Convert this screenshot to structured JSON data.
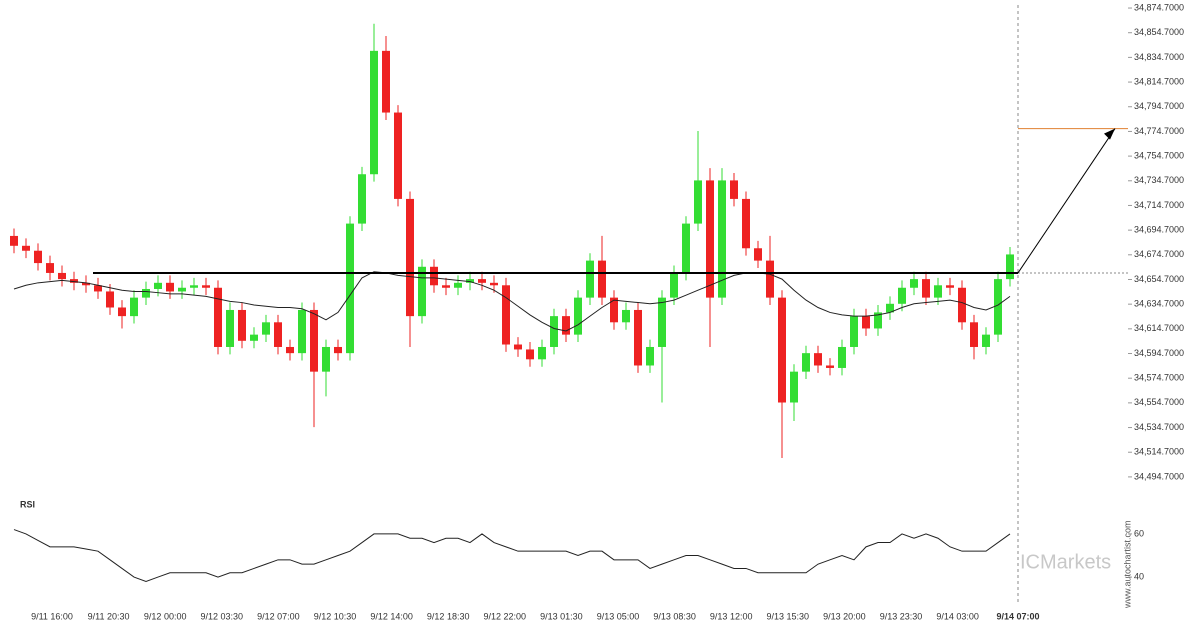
{
  "chart_data": {
    "type": "candlestick",
    "up_color": "#33dd33",
    "down_color": "#ee2222",
    "open": [
      34690,
      34682,
      34678,
      34668,
      34660,
      34655,
      34652,
      34650,
      34645,
      34632,
      34625,
      34640,
      34647,
      34652,
      34645,
      34648,
      34650,
      34648,
      34600,
      34630,
      34605,
      34610,
      34620,
      34600,
      34595,
      34630,
      34580,
      34600,
      34595,
      34700,
      34740,
      34840,
      34790,
      34720,
      34625,
      34665,
      34650,
      34648,
      34652,
      34655,
      34652,
      34650,
      34602,
      34598,
      34590,
      34600,
      34625,
      34610,
      34640,
      34670,
      34640,
      34620,
      34630,
      34585,
      34600,
      34640,
      34660,
      34700,
      34735,
      34640,
      34735,
      34720,
      34680,
      34670,
      34640,
      34555,
      34580,
      34595,
      34585,
      34583,
      34600,
      34625,
      34615,
      34628,
      34635,
      34648,
      34655,
      34640,
      34650,
      34648,
      34620,
      34600,
      34610,
      34655
    ],
    "high": [
      34696,
      34688,
      34684,
      34674,
      34666,
      34661,
      34658,
      34656,
      34651,
      34638,
      34646,
      34653,
      34658,
      34658,
      34654,
      34656,
      34656,
      34654,
      34636,
      34636,
      34616,
      34626,
      34626,
      34606,
      34636,
      34636,
      34606,
      34606,
      34706,
      34746,
      34862,
      34852,
      34796,
      34726,
      34671,
      34671,
      34656,
      34658,
      34661,
      34661,
      34658,
      34656,
      34608,
      34604,
      34606,
      34631,
      34631,
      34646,
      34676,
      34690,
      34646,
      34636,
      34636,
      34606,
      34646,
      34666,
      34706,
      34775,
      34745,
      34745,
      34741,
      34726,
      34686,
      34690,
      34646,
      34586,
      34601,
      34601,
      34591,
      34606,
      34631,
      34631,
      34634,
      34641,
      34654,
      34661,
      34661,
      34656,
      34656,
      34654,
      34626,
      34616,
      34661,
      34681
    ],
    "low": [
      34676,
      34672,
      34662,
      34654,
      34649,
      34646,
      34644,
      34639,
      34626,
      34615,
      34619,
      34634,
      34641,
      34639,
      34639,
      34642,
      34642,
      34594,
      34594,
      34599,
      34599,
      34604,
      34594,
      34589,
      34589,
      34535,
      34560,
      34589,
      34589,
      34694,
      34734,
      34784,
      34714,
      34600,
      34619,
      34644,
      34642,
      34642,
      34646,
      34646,
      34644,
      34596,
      34592,
      34584,
      34584,
      34594,
      34604,
      34604,
      34634,
      34634,
      34614,
      34614,
      34579,
      34579,
      34555,
      34634,
      34654,
      34694,
      34600,
      34634,
      34714,
      34674,
      34664,
      34634,
      34510,
      34540,
      34574,
      34579,
      34577,
      34577,
      34594,
      34609,
      34609,
      34622,
      34629,
      34642,
      34634,
      34634,
      34642,
      34614,
      34590,
      34594,
      34604,
      34649
    ],
    "close": [
      34682,
      34678,
      34668,
      34660,
      34655,
      34652,
      34650,
      34645,
      34632,
      34625,
      34640,
      34647,
      34652,
      34645,
      34648,
      34650,
      34648,
      34600,
      34630,
      34605,
      34610,
      34620,
      34600,
      34595,
      34630,
      34580,
      34600,
      34595,
      34700,
      34740,
      34840,
      34790,
      34720,
      34625,
      34665,
      34650,
      34648,
      34652,
      34655,
      34652,
      34650,
      34602,
      34598,
      34590,
      34600,
      34625,
      34610,
      34640,
      34670,
      34640,
      34620,
      34630,
      34585,
      34600,
      34640,
      34660,
      34700,
      34735,
      34640,
      34735,
      34720,
      34680,
      34670,
      34640,
      34555,
      34580,
      34595,
      34585,
      34583,
      34600,
      34625,
      34615,
      34628,
      34635,
      34648,
      34655,
      34640,
      34650,
      34648,
      34620,
      34600,
      34610,
      34655,
      34675
    ],
    "ma": [
      34647,
      34650,
      34652,
      34653,
      34654,
      34653,
      34652,
      34650,
      34648,
      34646,
      34645,
      34645,
      34644,
      34643,
      34643,
      34642,
      34641,
      34639,
      34637,
      34636,
      34634,
      34633,
      34632,
      34632,
      34631,
      34627,
      34622,
      34628,
      34642,
      34656,
      34661,
      34660,
      34658,
      34657,
      34656,
      34656,
      34655,
      34654,
      34653,
      34650,
      34646,
      34640,
      34633,
      34626,
      34620,
      34615,
      34613,
      34618,
      34625,
      34632,
      34638,
      34637,
      34636,
      34635,
      34636,
      34638,
      34642,
      34646,
      34650,
      34654,
      34658,
      34660,
      34660,
      34659,
      34655,
      34646,
      34638,
      34632,
      34628,
      34626,
      34625,
      34625,
      34626,
      34628,
      34632,
      34635,
      34636,
      34637,
      34638,
      34636,
      34632,
      34630,
      34634,
      34641
    ],
    "ylim": [
      34490,
      34880
    ],
    "yticks": [
      {
        "value": 34874.7,
        "label": "34,874.7000"
      },
      {
        "value": 34854.7,
        "label": "34,854.7000"
      },
      {
        "value": 34834.7,
        "label": "34,834.7000"
      },
      {
        "value": 34814.7,
        "label": "34,814.7000"
      },
      {
        "value": 34794.7,
        "label": "34,794.7000"
      },
      {
        "value": 34774.7,
        "label": "34,774.7000"
      },
      {
        "value": 34754.7,
        "label": "34,754.7000"
      },
      {
        "value": 34734.7,
        "label": "34,734.7000"
      },
      {
        "value": 34714.7,
        "label": "34,714.7000"
      },
      {
        "value": 34694.7,
        "label": "34,694.7000"
      },
      {
        "value": 34674.7,
        "label": "34,674.7000"
      },
      {
        "value": 34654.7,
        "label": "34,654.7000"
      },
      {
        "value": 34634.7,
        "label": "34,634.7000"
      },
      {
        "value": 34614.7,
        "label": "34,614.7000"
      },
      {
        "value": 34594.7,
        "label": "34,594.7000"
      },
      {
        "value": 34574.7,
        "label": "34,574.7000"
      },
      {
        "value": 34554.7,
        "label": "34,554.7000"
      },
      {
        "value": 34534.7,
        "label": "34,534.7000"
      },
      {
        "value": 34514.7,
        "label": "34,514.7000"
      },
      {
        "value": 34494.7,
        "label": "34,494.7000"
      }
    ],
    "support": 34660,
    "target": 34777,
    "x_labels": [
      "9/11 16:00",
      "9/11 20:30",
      "9/12 00:00",
      "9/12 03:30",
      "9/12 07:00",
      "9/12 10:30",
      "9/12 14:00",
      "9/12 18:30",
      "9/12 22:00",
      "9/13 01:30",
      "9/13 05:00",
      "9/13 08:30",
      "9/13 12:00",
      "9/13 15:30",
      "9/13 20:00",
      "9/13 23:30",
      "9/14 03:00",
      "9/14 07:00"
    ],
    "rsi_title": "RSI",
    "rsi": [
      62,
      60,
      57,
      54,
      54,
      54,
      53,
      52,
      48,
      44,
      40,
      38,
      40,
      42,
      42,
      42,
      42,
      40,
      42,
      42,
      44,
      46,
      48,
      48,
      46,
      46,
      48,
      50,
      52,
      56,
      60,
      60,
      60,
      58,
      58,
      56,
      58,
      58,
      56,
      60,
      56,
      54,
      52,
      52,
      52,
      52,
      52,
      50,
      52,
      52,
      48,
      48,
      48,
      44,
      46,
      48,
      50,
      50,
      48,
      46,
      44,
      44,
      42,
      42,
      42,
      42,
      42,
      46,
      48,
      50,
      48,
      54,
      56,
      56,
      60,
      58,
      60,
      58,
      54,
      52,
      52,
      52,
      56,
      60
    ],
    "rsi_ylim": [
      28,
      72
    ],
    "rsi_yticks": [
      60,
      40
    ],
    "watermark": "ICMarkets",
    "source": "www.autochartist.com"
  }
}
